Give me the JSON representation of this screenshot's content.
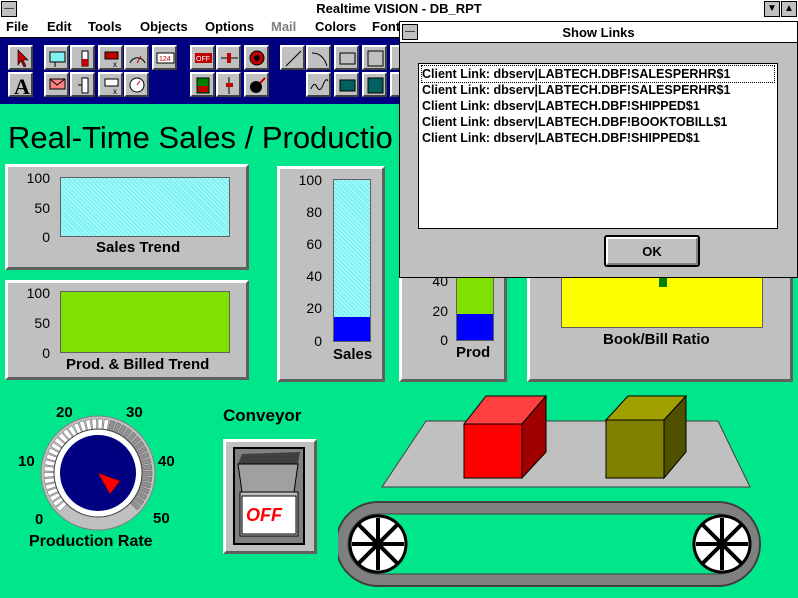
{
  "window": {
    "title": "Realtime VISION - DB_RPT"
  },
  "menu": [
    "File",
    "Edit",
    "Tools",
    "Objects",
    "Options",
    "Mail",
    "Colors",
    "Font"
  ],
  "main_title": "Real-Time Sales / Productio",
  "gauges": {
    "sales_trend": {
      "label": "Sales Trend",
      "ticks": [
        "100",
        "50",
        "0"
      ]
    },
    "prod_billed_trend": {
      "label": "Prod. & Billed Trend",
      "ticks": [
        "100",
        "50",
        "0"
      ]
    },
    "sales_bar": {
      "label": "Sales",
      "ticks": [
        "100",
        "80",
        "60",
        "40",
        "20",
        "0"
      ],
      "level": 0.15
    },
    "prod_bar": {
      "label": "Prod",
      "ticks": [
        "40",
        "20",
        "0"
      ],
      "level": 0.35
    },
    "book_bill": {
      "label": "Book/Bill Ratio"
    }
  },
  "dial": {
    "label": "Production Rate",
    "ticks": [
      "0",
      "10",
      "20",
      "30",
      "40",
      "50"
    ]
  },
  "conveyor": {
    "label": "Conveyor",
    "switch_state": "OFF"
  },
  "dialog": {
    "title": "Show Links",
    "links": [
      "Client Link: dbserv|LABTECH.DBF!SALESPERHR$1",
      "Client Link: dbserv|LABTECH.DBF!SALESPERHR$1",
      "Client Link: dbserv|LABTECH.DBF!SHIPPED$1",
      "Client Link: dbserv|LABTECH.DBF!BOOKTOBILL$1",
      "Client Link: dbserv|LABTECH.DBF!SHIPPED$1"
    ],
    "ok_label": "OK"
  },
  "colors": {
    "background": "#00e68a",
    "toolbar": "#000080",
    "trend_cyan": "#80f0f0",
    "trend_green": "#80e000",
    "bar_blue": "#0000ff",
    "ratio_yellow": "#ffff00",
    "box_red": "#ff0000",
    "box_olive": "#808000"
  }
}
